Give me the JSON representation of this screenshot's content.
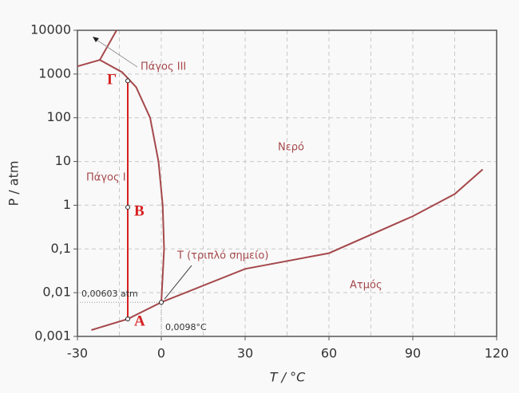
{
  "chart_data": {
    "type": "line",
    "ylog": true,
    "xlim": [
      -30,
      120
    ],
    "xticks": [
      -30,
      0,
      30,
      60,
      90,
      120
    ],
    "x_minor_grid": [
      -15,
      15,
      45,
      75,
      105
    ],
    "ylim": [
      0.001,
      10000
    ],
    "yticks": [
      {
        "value": 0.001,
        "label": "0,001"
      },
      {
        "value": 0.01,
        "label": "0,01"
      },
      {
        "value": 0.1,
        "label": "0,1"
      },
      1,
      10,
      100,
      1000,
      10000
    ],
    "grid": true,
    "xlabel": "T / °C",
    "ylabel": "P / atm",
    "curves": [
      {
        "color": "#a5484b",
        "x": [
          -25,
          -12,
          0.0098
        ],
        "values": [
          0.0014,
          0.0025,
          0.00603
        ]
      },
      {
        "color": "#a5484b",
        "x": [
          0.0098,
          30,
          60,
          90,
          105,
          115
        ],
        "values": [
          0.00603,
          0.035,
          0.08,
          0.56,
          1.8,
          6.6
        ]
      },
      {
        "color": "#a5484b",
        "x": [
          0.0098,
          1,
          0.5,
          -1,
          -4,
          -9,
          -14,
          -22
        ],
        "values": [
          0.00603,
          0.1,
          1,
          10,
          100,
          500,
          1100,
          2100
        ]
      },
      {
        "color": "#a5484b",
        "x": [
          -22,
          -30
        ],
        "values": [
          2100,
          1500
        ]
      },
      {
        "color": "#a5484b",
        "x": [
          -22,
          -16
        ],
        "values": [
          2100,
          10000
        ]
      }
    ],
    "points": [
      {
        "label": "A",
        "x": -12,
        "y": 0.0025
      },
      {
        "label": "B",
        "x": -12,
        "y": 0.9
      },
      {
        "label": "Γ",
        "x": -12,
        "y": 700
      }
    ],
    "point_color": "#d62020",
    "triple_point": {
      "x": 0.0098,
      "y": 0.00603,
      "x_label": "0,0098°C",
      "y_label": "0,00603 atm",
      "label": "T (τριπλό σημείο)"
    },
    "regions": [
      "Πάγος I",
      "Νερό",
      "Ατμός",
      "Πάγος III"
    ]
  }
}
